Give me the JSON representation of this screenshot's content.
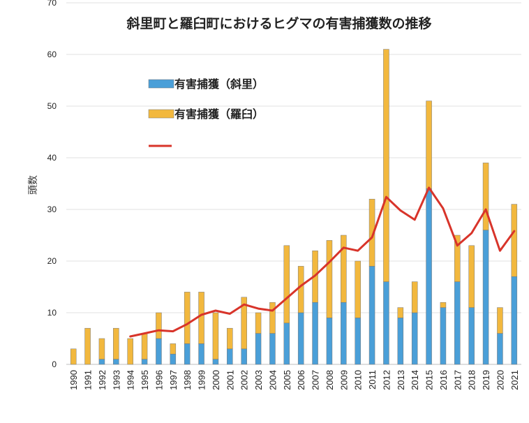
{
  "chart_data": {
    "type": "bar",
    "stacked": true,
    "title": "斜里町と羅臼町におけるヒグマの有害捕獲数の推移",
    "ylabel": "頭数",
    "xlabel": "",
    "ylim": [
      0,
      70
    ],
    "yticks": [
      0,
      10,
      20,
      30,
      40,
      50,
      60,
      70
    ],
    "grid": true,
    "legend_position": "top-left",
    "categories": [
      "1990",
      "1991",
      "1992",
      "1993",
      "1994",
      "1995",
      "1996",
      "1997",
      "1998",
      "1999",
      "2000",
      "2001",
      "2002",
      "2003",
      "2004",
      "2005",
      "2006",
      "2007",
      "2008",
      "2009",
      "2010",
      "2011",
      "2012",
      "2013",
      "2014",
      "2015",
      "2016",
      "2017",
      "2018",
      "2019",
      "2020",
      "2021"
    ],
    "series": [
      {
        "name": "有害捕獲（斜里）",
        "kind": "bar",
        "color": "#4a9fd8",
        "values": [
          0,
          0,
          1,
          1,
          0,
          1,
          5,
          2,
          4,
          4,
          1,
          3,
          3,
          6,
          6,
          8,
          10,
          12,
          9,
          12,
          9,
          19,
          16,
          9,
          10,
          34,
          11,
          16,
          11,
          26,
          6,
          17
        ]
      },
      {
        "name": "有害捕獲（羅臼）",
        "kind": "bar",
        "color": "#f2b83e",
        "values": [
          3,
          7,
          4,
          6,
          5,
          5,
          5,
          2,
          10,
          10,
          9,
          4,
          10,
          4,
          6,
          15,
          9,
          10,
          15,
          13,
          11,
          13,
          45,
          2,
          6,
          17,
          1,
          9,
          12,
          13,
          5,
          14
        ]
      },
      {
        "name": "",
        "kind": "line",
        "color": "#d8342a",
        "values": [
          null,
          null,
          null,
          null,
          5.4,
          6.0,
          6.6,
          6.4,
          7.8,
          9.6,
          10.4,
          9.8,
          11.6,
          10.8,
          10.4,
          12.8,
          15.2,
          17.2,
          19.8,
          22.6,
          22.0,
          24.6,
          32.4,
          29.8,
          28.0,
          34.2,
          30.2,
          23.0,
          25.4,
          30.0,
          22.0,
          25.8
        ]
      }
    ]
  }
}
